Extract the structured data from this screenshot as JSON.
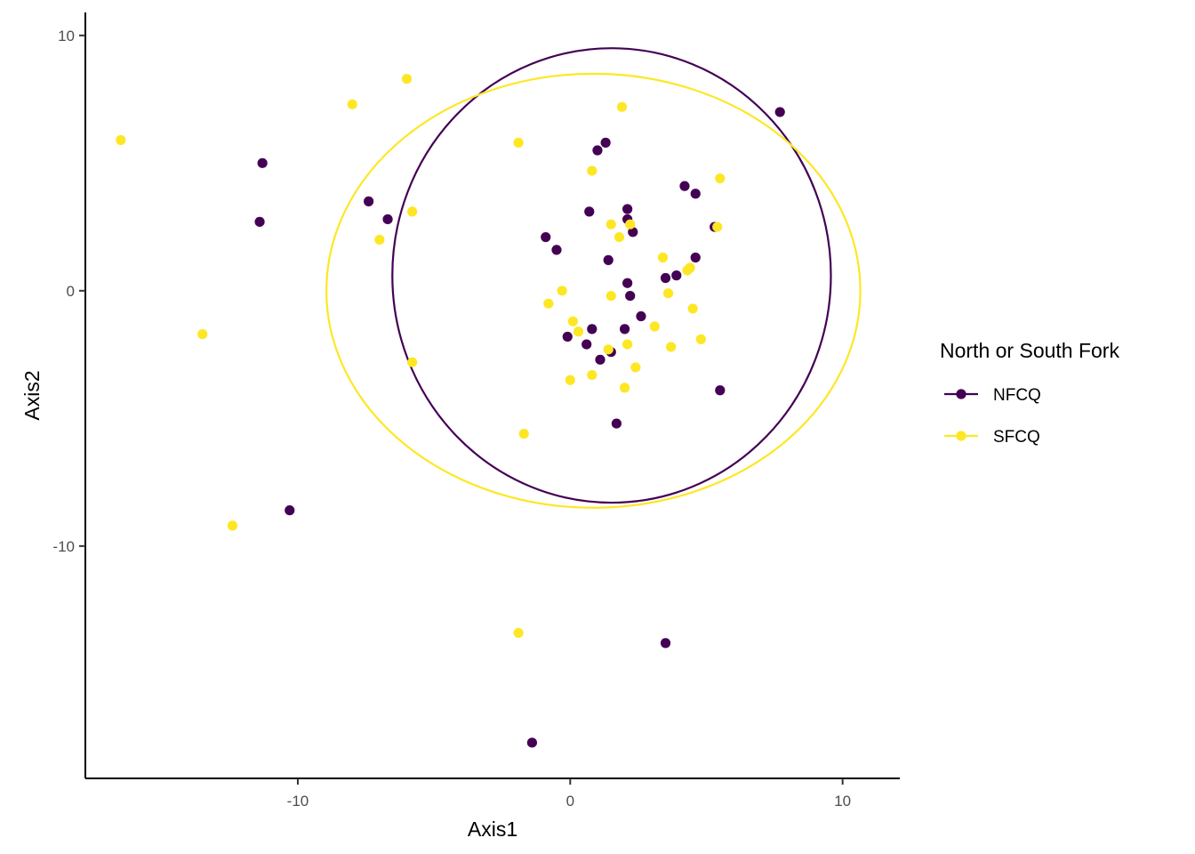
{
  "chart_data": {
    "type": "scatter",
    "xlabel": "Axis1",
    "ylabel": "Axis2",
    "xlim": [
      -17.8,
      12.1
    ],
    "ylim": [
      -19.1,
      10.9
    ],
    "xticks": [
      -10,
      0,
      10
    ],
    "yticks": [
      -10,
      0,
      10
    ],
    "xtick_labels": [
      "-10",
      "0",
      "10"
    ],
    "ytick_labels": [
      "-10",
      "0",
      "10"
    ],
    "grid": false,
    "legend": {
      "title": "North or South Fork",
      "position": "right"
    },
    "series": [
      {
        "name": "NFCQ",
        "color": "#440154",
        "ellipse": {
          "cx": 1.52,
          "cy": 0.6,
          "rx": 8.05,
          "ry": 8.9
        },
        "points": [
          [
            -11.3,
            5.0
          ],
          [
            -11.4,
            2.7
          ],
          [
            -7.4,
            3.5
          ],
          [
            -6.7,
            2.8
          ],
          [
            -10.3,
            -8.6
          ],
          [
            1.0,
            5.5
          ],
          [
            1.3,
            5.8
          ],
          [
            7.7,
            7.0
          ],
          [
            4.2,
            4.1
          ],
          [
            4.6,
            3.8
          ],
          [
            0.7,
            3.1
          ],
          [
            2.1,
            3.2
          ],
          [
            2.1,
            2.8
          ],
          [
            2.3,
            2.3
          ],
          [
            5.3,
            2.5
          ],
          [
            -0.9,
            2.1
          ],
          [
            -0.5,
            1.6
          ],
          [
            1.4,
            1.2
          ],
          [
            4.6,
            1.3
          ],
          [
            3.5,
            0.5
          ],
          [
            3.9,
            0.6
          ],
          [
            2.1,
            0.3
          ],
          [
            2.2,
            -0.2
          ],
          [
            2.6,
            -1.0
          ],
          [
            0.8,
            -1.5
          ],
          [
            2.0,
            -1.5
          ],
          [
            -0.1,
            -1.8
          ],
          [
            0.6,
            -2.1
          ],
          [
            1.5,
            -2.4
          ],
          [
            1.1,
            -2.7
          ],
          [
            5.5,
            -3.9
          ],
          [
            1.7,
            -5.2
          ],
          [
            3.5,
            -13.8
          ],
          [
            -1.4,
            -17.7
          ]
        ]
      },
      {
        "name": "SFCQ",
        "color": "#fde725",
        "ellipse": {
          "cx": 0.85,
          "cy": 0.0,
          "rx": 9.8,
          "ry": 8.5
        },
        "points": [
          [
            -16.5,
            5.9
          ],
          [
            -6.0,
            8.3
          ],
          [
            -8.0,
            7.3
          ],
          [
            -1.9,
            5.8
          ],
          [
            1.9,
            7.2
          ],
          [
            0.8,
            4.7
          ],
          [
            5.5,
            4.4
          ],
          [
            -5.8,
            3.1
          ],
          [
            -7.0,
            2.0
          ],
          [
            1.5,
            2.6
          ],
          [
            2.2,
            2.6
          ],
          [
            1.8,
            2.1
          ],
          [
            5.4,
            2.5
          ],
          [
            3.4,
            1.3
          ],
          [
            4.3,
            0.8
          ],
          [
            4.4,
            0.9
          ],
          [
            -0.3,
            0.0
          ],
          [
            1.5,
            -0.2
          ],
          [
            3.6,
            -0.1
          ],
          [
            -0.8,
            -0.5
          ],
          [
            4.5,
            -0.7
          ],
          [
            0.1,
            -1.2
          ],
          [
            0.3,
            -1.6
          ],
          [
            3.1,
            -1.4
          ],
          [
            1.4,
            -2.3
          ],
          [
            2.1,
            -2.1
          ],
          [
            3.7,
            -2.2
          ],
          [
            4.8,
            -1.9
          ],
          [
            -13.5,
            -1.7
          ],
          [
            -5.8,
            -2.8
          ],
          [
            2.4,
            -3.0
          ],
          [
            0.8,
            -3.3
          ],
          [
            0.0,
            -3.5
          ],
          [
            2.0,
            -3.8
          ],
          [
            -1.7,
            -5.6
          ],
          [
            -12.4,
            -9.2
          ],
          [
            -1.9,
            -13.4
          ]
        ]
      }
    ]
  }
}
